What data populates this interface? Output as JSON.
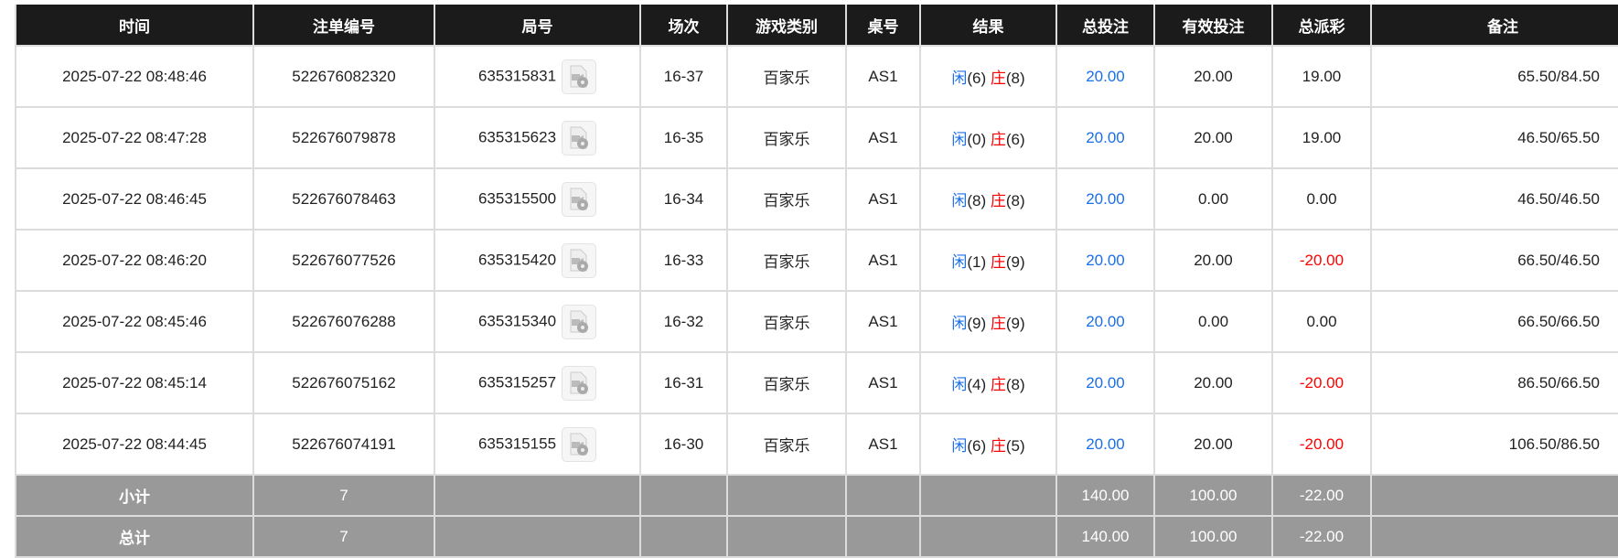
{
  "columns": [
    "时间",
    "注单编号",
    "局号",
    "场次",
    "游戏类别",
    "桌号",
    "结果",
    "总投注",
    "有效投注",
    "总派彩",
    "备注"
  ],
  "colors": {
    "header_bg": "#1b1b1b",
    "player": "#1a6fe8",
    "banker": "#ff0000",
    "bet": "#1a6fe8",
    "negative": "#ff0000",
    "summary_bg": "#999999"
  },
  "rows": [
    {
      "time": "2025-07-22 08:48:46",
      "order": "522676082320",
      "round": "635315831",
      "session": "16-37",
      "game": "百家乐",
      "table": "AS1",
      "player": "闲",
      "player_pts": "(6)",
      "banker": "庄",
      "banker_pts": "(8)",
      "bet": "20.00",
      "valid": "20.00",
      "payout": "19.00",
      "payout_neg": false,
      "remark": "65.50/84.50"
    },
    {
      "time": "2025-07-22 08:47:28",
      "order": "522676079878",
      "round": "635315623",
      "session": "16-35",
      "game": "百家乐",
      "table": "AS1",
      "player": "闲",
      "player_pts": "(0)",
      "banker": "庄",
      "banker_pts": "(6)",
      "bet": "20.00",
      "valid": "20.00",
      "payout": "19.00",
      "payout_neg": false,
      "remark": "46.50/65.50"
    },
    {
      "time": "2025-07-22 08:46:45",
      "order": "522676078463",
      "round": "635315500",
      "session": "16-34",
      "game": "百家乐",
      "table": "AS1",
      "player": "闲",
      "player_pts": "(8)",
      "banker": "庄",
      "banker_pts": "(8)",
      "bet": "20.00",
      "valid": "0.00",
      "payout": "0.00",
      "payout_neg": false,
      "remark": "46.50/46.50"
    },
    {
      "time": "2025-07-22 08:46:20",
      "order": "522676077526",
      "round": "635315420",
      "session": "16-33",
      "game": "百家乐",
      "table": "AS1",
      "player": "闲",
      "player_pts": "(1)",
      "banker": "庄",
      "banker_pts": "(9)",
      "bet": "20.00",
      "valid": "20.00",
      "payout": "-20.00",
      "payout_neg": true,
      "remark": "66.50/46.50"
    },
    {
      "time": "2025-07-22 08:45:46",
      "order": "522676076288",
      "round": "635315340",
      "session": "16-32",
      "game": "百家乐",
      "table": "AS1",
      "player": "闲",
      "player_pts": "(9)",
      "banker": "庄",
      "banker_pts": "(9)",
      "bet": "20.00",
      "valid": "0.00",
      "payout": "0.00",
      "payout_neg": false,
      "remark": "66.50/66.50"
    },
    {
      "time": "2025-07-22 08:45:14",
      "order": "522676075162",
      "round": "635315257",
      "session": "16-31",
      "game": "百家乐",
      "table": "AS1",
      "player": "闲",
      "player_pts": "(4)",
      "banker": "庄",
      "banker_pts": "(8)",
      "bet": "20.00",
      "valid": "20.00",
      "payout": "-20.00",
      "payout_neg": true,
      "remark": "86.50/66.50"
    },
    {
      "time": "2025-07-22 08:44:45",
      "order": "522676074191",
      "round": "635315155",
      "session": "16-30",
      "game": "百家乐",
      "table": "AS1",
      "player": "闲",
      "player_pts": "(6)",
      "banker": "庄",
      "banker_pts": "(5)",
      "bet": "20.00",
      "valid": "20.00",
      "payout": "-20.00",
      "payout_neg": true,
      "remark": "106.50/86.50"
    }
  ],
  "subtotal": {
    "label": "小计",
    "count": "7",
    "bet": "140.00",
    "valid": "100.00",
    "payout": "-22.00"
  },
  "total": {
    "label": "总计",
    "count": "7",
    "bet": "140.00",
    "valid": "100.00",
    "payout": "-22.00"
  }
}
